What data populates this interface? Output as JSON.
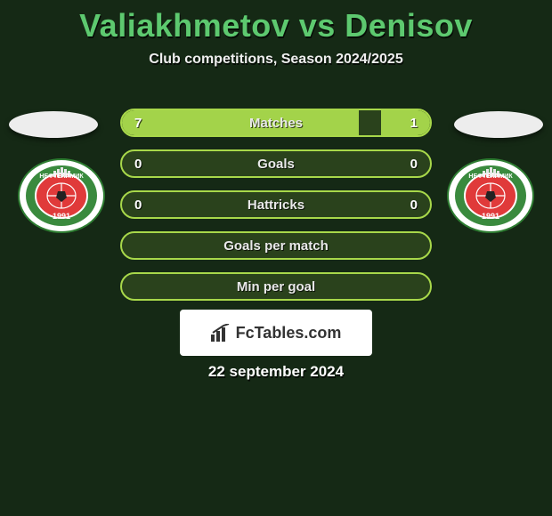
{
  "title": "Valiakhmetov vs Denisov",
  "subtitle": "Club competitions, Season 2024/2025",
  "date": "22 september 2024",
  "brand": "FcTables.com",
  "colors": {
    "accent": "#a3d34a",
    "border": "#a8d84a",
    "title": "#5dc96f",
    "text": "#eeeeee",
    "bg": "#1a2f1a"
  },
  "rows": [
    {
      "label": "Matches",
      "left_val": "7",
      "right_val": "1",
      "left_pct": 77,
      "right_pct": 16
    },
    {
      "label": "Goals",
      "left_val": "0",
      "right_val": "0",
      "left_pct": 0,
      "right_pct": 0
    },
    {
      "label": "Hattricks",
      "left_val": "0",
      "right_val": "0",
      "left_pct": 0,
      "right_pct": 0
    },
    {
      "label": "Goals per match",
      "left_val": "",
      "right_val": "",
      "left_pct": 0,
      "right_pct": 0
    },
    {
      "label": "Min per goal",
      "left_val": "",
      "right_val": "",
      "left_pct": 0,
      "right_pct": 0
    }
  ],
  "crest": {
    "top_text": "НЕФТЕХИМИК",
    "year": "1991",
    "ring_outer": "#2e7d32",
    "ring_inner": "#ffffff",
    "band": "#3a8a3e",
    "center": "#e03a3a",
    "center_stroke": "#ffffff"
  }
}
